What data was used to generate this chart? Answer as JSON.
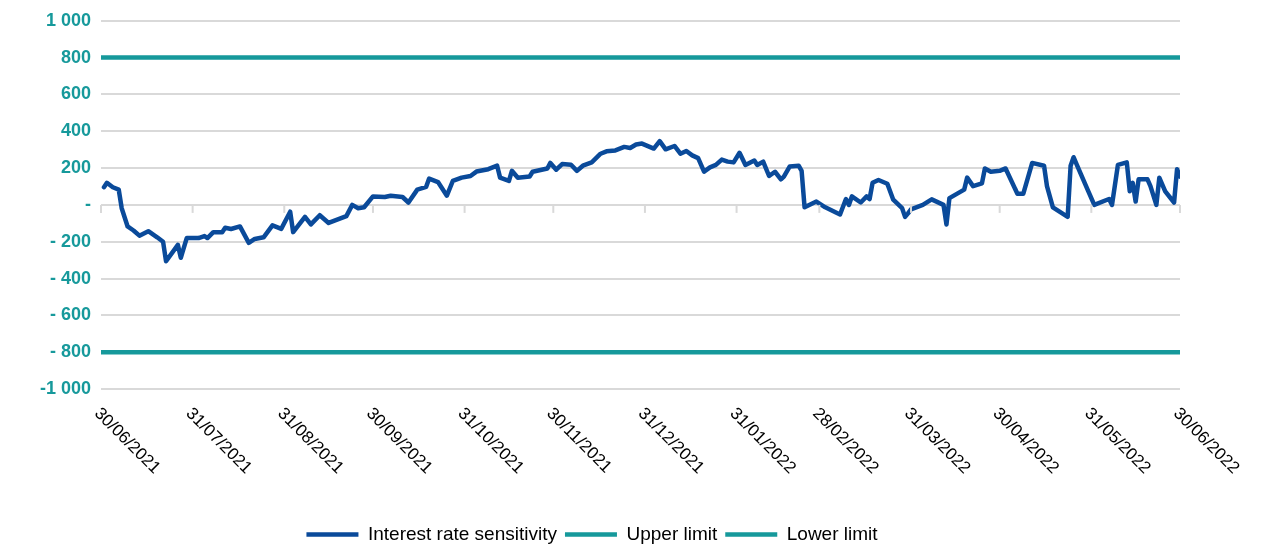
{
  "chart_data": {
    "type": "line",
    "legend": "bottom",
    "grid": "y",
    "marker": "none",
    "line_style": "solid",
    "xlim": [
      "2021-06-30",
      "2022-06-30"
    ],
    "xticks": [
      {
        "value": "2021-06-30",
        "label": "30/06/2021"
      },
      {
        "value": "2021-07-31",
        "label": "31/07/2021"
      },
      {
        "value": "2021-08-31",
        "label": "31/08/2021"
      },
      {
        "value": "2021-09-30",
        "label": "30/09/2021"
      },
      {
        "value": "2021-10-31",
        "label": "31/10/2021"
      },
      {
        "value": "2021-11-30",
        "label": "30/11/2021"
      },
      {
        "value": "2021-12-31",
        "label": "31/12/2021"
      },
      {
        "value": "2022-01-31",
        "label": "31/01/2022"
      },
      {
        "value": "2022-02-28",
        "label": "28/02/2022"
      },
      {
        "value": "2022-03-31",
        "label": "31/03/2022"
      },
      {
        "value": "2022-04-30",
        "label": "30/04/2022"
      },
      {
        "value": "2022-05-31",
        "label": "31/05/2022"
      },
      {
        "value": "2022-06-30",
        "label": "30/06/2022"
      }
    ],
    "ylim": [
      -1000,
      1000
    ],
    "yticks": [
      {
        "value": -1000,
        "label": "-1 000"
      },
      {
        "value": -800,
        "label": "- 800"
      },
      {
        "value": -600,
        "label": "- 600"
      },
      {
        "value": -400,
        "label": "- 400"
      },
      {
        "value": -200,
        "label": "- 200"
      },
      {
        "value": 0,
        "label": "-"
      },
      {
        "value": 200,
        "label": "200"
      },
      {
        "value": 400,
        "label": "400"
      },
      {
        "value": 600,
        "label": "600"
      },
      {
        "value": 800,
        "label": "800"
      },
      {
        "value": 1000,
        "label": "1 000"
      }
    ],
    "series": [
      {
        "name": "Interest rate sensitivity",
        "color": "#0a4a9a",
        "x": [
          "2021-07-01",
          "2021-07-02",
          "2021-07-04",
          "2021-07-06",
          "2021-07-07",
          "2021-07-09",
          "2021-07-11",
          "2021-07-13",
          "2021-07-16",
          "2021-07-19",
          "2021-07-21",
          "2021-07-22",
          "2021-07-26",
          "2021-07-27",
          "2021-07-29",
          "2021-08-02",
          "2021-08-04",
          "2021-08-05",
          "2021-08-07",
          "2021-08-10",
          "2021-08-11",
          "2021-08-13",
          "2021-08-16",
          "2021-08-19",
          "2021-08-21",
          "2021-08-24",
          "2021-08-27",
          "2021-08-30",
          "2021-08-31",
          "2021-09-02",
          "2021-09-03",
          "2021-09-07",
          "2021-09-09",
          "2021-09-12",
          "2021-09-15",
          "2021-09-21",
          "2021-09-23",
          "2021-09-25",
          "2021-09-27",
          "2021-09-30",
          "2021-10-04",
          "2021-10-06",
          "2021-10-10",
          "2021-10-12",
          "2021-10-15",
          "2021-10-18",
          "2021-10-19",
          "2021-10-22",
          "2021-10-25",
          "2021-10-27",
          "2021-10-30",
          "2021-11-02",
          "2021-11-04",
          "2021-11-08",
          "2021-11-11",
          "2021-11-12",
          "2021-11-15",
          "2021-11-16",
          "2021-11-18",
          "2021-11-22",
          "2021-11-23",
          "2021-11-28",
          "2021-11-29",
          "2021-12-01",
          "2021-12-03",
          "2021-12-06",
          "2021-12-08",
          "2021-12-10",
          "2021-12-13",
          "2021-12-16",
          "2021-12-18",
          "2021-12-21",
          "2021-12-24",
          "2021-12-26",
          "2021-12-28",
          "2021-12-30",
          "2022-01-03",
          "2022-01-05",
          "2022-01-07",
          "2022-01-10",
          "2022-01-12",
          "2022-01-14",
          "2022-01-16",
          "2022-01-18",
          "2022-01-20",
          "2022-01-22",
          "2022-01-24",
          "2022-01-26",
          "2022-01-28",
          "2022-01-30",
          "2022-02-01",
          "2022-02-03",
          "2022-02-06",
          "2022-02-07",
          "2022-02-09",
          "2022-02-11",
          "2022-02-13",
          "2022-02-15",
          "2022-02-16",
          "2022-02-18",
          "2022-02-21",
          "2022-02-22",
          "2022-02-23",
          "2022-02-27",
          "2022-03-02",
          "2022-03-07",
          "2022-03-09",
          "2022-03-10",
          "2022-03-11",
          "2022-03-14",
          "2022-03-16",
          "2022-03-17",
          "2022-03-18",
          "2022-03-20",
          "2022-03-23",
          "2022-03-25",
          "2022-03-28",
          "2022-03-29",
          "2022-03-30",
          "2022-03-31",
          "2022-04-04",
          "2022-04-07",
          "2022-04-11",
          "2022-04-12",
          "2022-04-13",
          "2022-04-18",
          "2022-04-19",
          "2022-04-21",
          "2022-04-24",
          "2022-04-25",
          "2022-04-27",
          "2022-04-30",
          "2022-05-02",
          "2022-05-06",
          "2022-05-08",
          "2022-05-11",
          "2022-05-15",
          "2022-05-16",
          "2022-05-18",
          "2022-05-23",
          "2022-05-24",
          "2022-05-25",
          "2022-05-26",
          "2022-05-30",
          "2022-06-01",
          "2022-06-06",
          "2022-06-07",
          "2022-06-09",
          "2022-06-12",
          "2022-06-13",
          "2022-06-14",
          "2022-06-15",
          "2022-06-16",
          "2022-06-19",
          "2022-06-20",
          "2022-06-22",
          "2022-06-23",
          "2022-06-25",
          "2022-06-28",
          "2022-06-29",
          "2022-06-30"
        ],
        "values": [
          96,
          120,
          96,
          83,
          -18,
          -117,
          -139,
          -167,
          -143,
          -176,
          -200,
          -306,
          -217,
          -287,
          -180,
          -180,
          -169,
          -180,
          -148,
          -148,
          -124,
          -131,
          -117,
          -206,
          -185,
          -176,
          -111,
          -130,
          -98,
          -37,
          -148,
          -65,
          -106,
          -56,
          -98,
          -61,
          0,
          -18,
          -13,
          46,
          43,
          50,
          43,
          13,
          83,
          98,
          143,
          124,
          50,
          130,
          148,
          157,
          181,
          194,
          213,
          148,
          130,
          185,
          148,
          154,
          180,
          198,
          228,
          191,
          222,
          218,
          185,
          213,
          231,
          278,
          291,
          296,
          315,
          309,
          328,
          333,
          306,
          346,
          302,
          320,
          278,
          293,
          269,
          254,
          181,
          204,
          217,
          246,
          235,
          231,
          283,
          217,
          241,
          217,
          235,
          157,
          180,
          139,
          154,
          209,
          213,
          185,
          -13,
          18,
          -13,
          -52,
          32,
          0,
          46,
          13,
          46,
          32,
          120,
          135,
          115,
          28,
          -18,
          -65,
          -46,
          -24,
          0,
          30,
          0,
          -106,
          37,
          83,
          148,
          102,
          117,
          198,
          180,
          185,
          198,
          61,
          61,
          228,
          213,
          102,
          -13,
          -65,
          213,
          259,
          222,
          74,
          0,
          32,
          0,
          217,
          231,
          74,
          120,
          18,
          139,
          139,
          102,
          0,
          148,
          74,
          13,
          194,
          154
        ]
      },
      {
        "name": "Upper limit",
        "color": "#16999b",
        "x": [
          "2021-06-30",
          "2022-06-30"
        ],
        "values": [
          800,
          800
        ]
      },
      {
        "name": "Lower limit",
        "color": "#16999b",
        "x": [
          "2021-06-30",
          "2022-06-30"
        ],
        "values": [
          -800,
          -800
        ]
      }
    ]
  }
}
